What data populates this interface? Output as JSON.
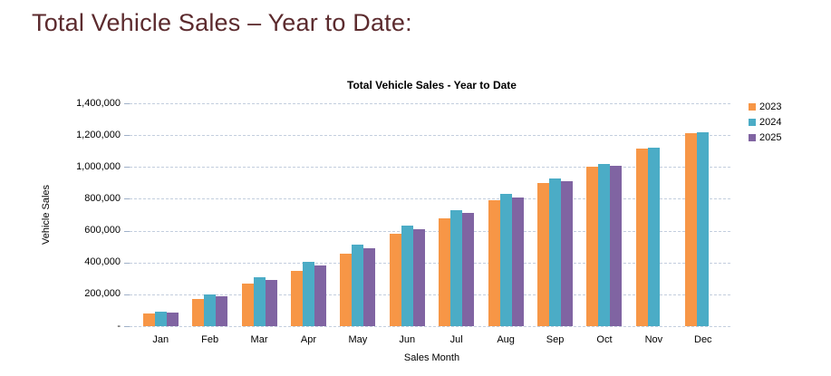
{
  "page_title": "Total Vehicle Sales – Year to Date:",
  "title_color": "#5c2b2e",
  "chart_data": {
    "type": "bar",
    "title": "Total Vehicle Sales - Year to Date",
    "xlabel": "Sales Month",
    "ylabel": "Vehicle Sales",
    "categories": [
      "Jan",
      "Feb",
      "Mar",
      "Apr",
      "May",
      "Jun",
      "Jul",
      "Aug",
      "Sep",
      "Oct",
      "Nov",
      "Dec"
    ],
    "series": [
      {
        "name": "2023",
        "color": "#F79646",
        "values": [
          80000,
          170000,
          270000,
          350000,
          455000,
          580000,
          680000,
          790000,
          900000,
          1000000,
          1115000,
          1210000
        ]
      },
      {
        "name": "2024",
        "color": "#4BACC6",
        "values": [
          90000,
          200000,
          305000,
          405000,
          515000,
          630000,
          730000,
          830000,
          925000,
          1020000,
          1120000,
          1220000
        ]
      },
      {
        "name": "2025",
        "color": "#8064A2",
        "values": [
          85000,
          185000,
          290000,
          380000,
          490000,
          610000,
          710000,
          810000,
          910000,
          1010000,
          null,
          null
        ]
      }
    ],
    "ylim": [
      0,
      1400000
    ],
    "ytick_step": 200000,
    "ytick_labels": [
      "-",
      "200,000",
      "400,000",
      "600,000",
      "800,000",
      "1,000,000",
      "1,200,000",
      "1,400,000"
    ],
    "grid": true,
    "gridline_color": "#c3cede",
    "legend_position": "right"
  }
}
